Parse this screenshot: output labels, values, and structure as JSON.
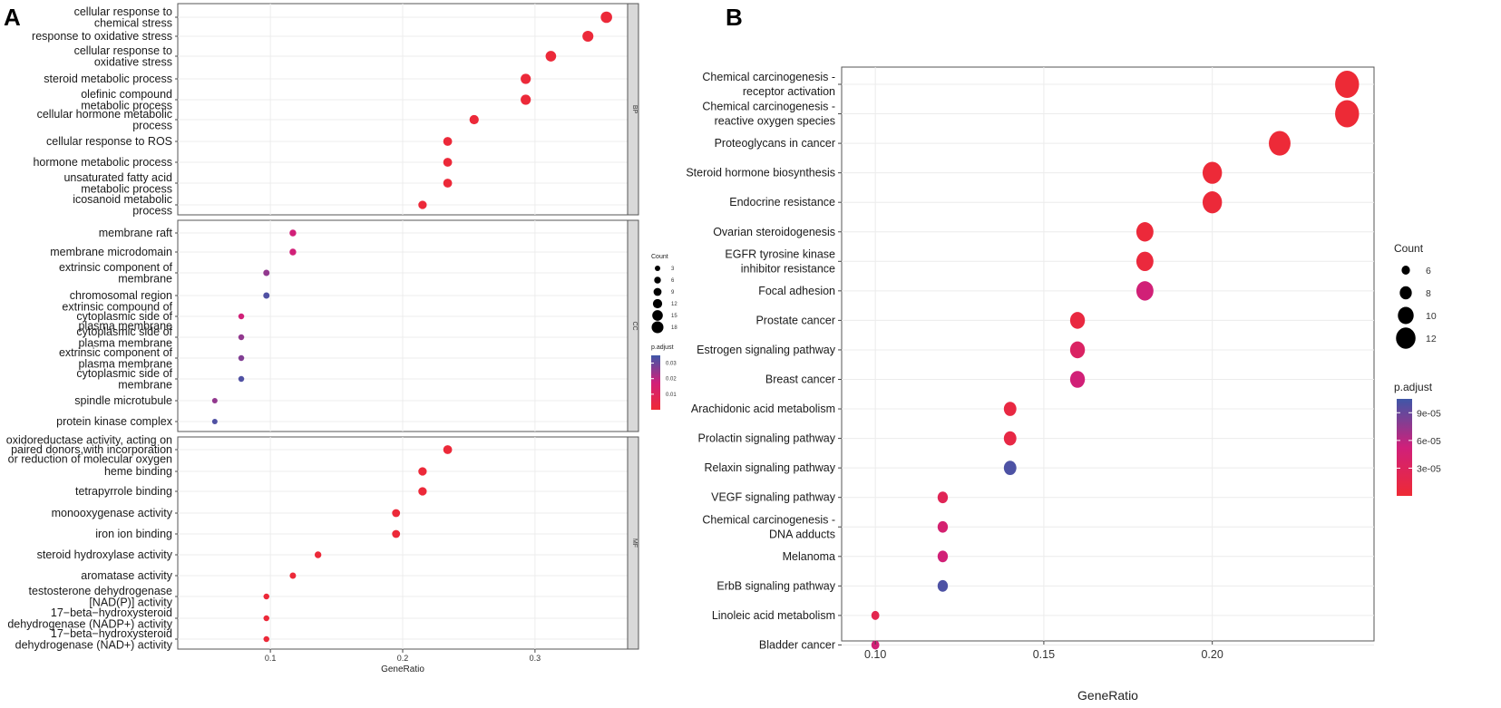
{
  "figure": {
    "label_a": "A",
    "label_b": "B"
  },
  "colors": {
    "high": "#ee2a35",
    "mid": "#d0207a",
    "low": "#3f57a8"
  },
  "chart_data": [
    {
      "type": "scatter",
      "title": "",
      "xlabel": "GeneRatio",
      "ylabel": "",
      "x_ticks": [
        0.1,
        0.2,
        0.3
      ],
      "x_tick_labels": [
        "0.1",
        "0.2",
        "0.3"
      ],
      "xlim": [
        0.03,
        0.37
      ],
      "size_legend": {
        "title": "Count",
        "values": [
          3,
          6,
          9,
          12,
          15,
          18
        ],
        "labels": [
          "3",
          "6",
          "9",
          "12",
          "15",
          "18"
        ]
      },
      "color_legend": {
        "title": "p.adjust",
        "range": [
          0.0,
          0.035
        ],
        "ticks": [
          0.01,
          0.02,
          0.03
        ],
        "labels": [
          "0.01",
          "0.02",
          "0.03"
        ]
      },
      "facets": [
        {
          "name": "BP",
          "terms": [
            {
              "label": [
                "cellular response to",
                "chemical stress"
              ],
              "x": 0.354,
              "count": 17,
              "p_adjust": 0.001
            },
            {
              "label": [
                "response to oxidative stress"
              ],
              "x": 0.34,
              "count": 16,
              "p_adjust": 0.001
            },
            {
              "label": [
                "cellular response to",
                "oxidative stress"
              ],
              "x": 0.312,
              "count": 15,
              "p_adjust": 0.001
            },
            {
              "label": [
                "steroid metabolic process"
              ],
              "x": 0.293,
              "count": 14,
              "p_adjust": 0.001
            },
            {
              "label": [
                "olefinic compound",
                "metabolic process"
              ],
              "x": 0.293,
              "count": 14,
              "p_adjust": 0.001
            },
            {
              "label": [
                "cellular hormone metabolic",
                "process"
              ],
              "x": 0.254,
              "count": 12,
              "p_adjust": 0.001
            },
            {
              "label": [
                "cellular response to ROS"
              ],
              "x": 0.234,
              "count": 11,
              "p_adjust": 0.001
            },
            {
              "label": [
                "hormone metabolic process"
              ],
              "x": 0.234,
              "count": 11,
              "p_adjust": 0.001
            },
            {
              "label": [
                "unsaturated fatty acid",
                "metabolic process"
              ],
              "x": 0.234,
              "count": 11,
              "p_adjust": 0.001
            },
            {
              "label": [
                "icosanoid metabolic",
                "process"
              ],
              "x": 0.215,
              "count": 10,
              "p_adjust": 0.001
            }
          ]
        },
        {
          "name": "CC",
          "terms": [
            {
              "label": [
                "membrane raft"
              ],
              "x": 0.117,
              "count": 6,
              "p_adjust": 0.017
            },
            {
              "label": [
                "membrane microdomain"
              ],
              "x": 0.117,
              "count": 6,
              "p_adjust": 0.017
            },
            {
              "label": [
                "extrinsic component of",
                "membrane"
              ],
              "x": 0.097,
              "count": 5,
              "p_adjust": 0.025
            },
            {
              "label": [
                "chromosomal region"
              ],
              "x": 0.097,
              "count": 5,
              "p_adjust": 0.033
            },
            {
              "label": [
                "extrinsic compound of",
                "cytoplasmic side of",
                "plasma membrane"
              ],
              "x": 0.078,
              "count": 4,
              "p_adjust": 0.017
            },
            {
              "label": [
                "cytoplasmic side of",
                "plasma membrane"
              ],
              "x": 0.078,
              "count": 4,
              "p_adjust": 0.025
            },
            {
              "label": [
                "extrinsic component of",
                "plasma membrane"
              ],
              "x": 0.078,
              "count": 4,
              "p_adjust": 0.027
            },
            {
              "label": [
                "cytoplasmic side of",
                "membrane"
              ],
              "x": 0.078,
              "count": 4,
              "p_adjust": 0.033
            },
            {
              "label": [
                "spindle microtubule"
              ],
              "x": 0.058,
              "count": 3,
              "p_adjust": 0.025
            },
            {
              "label": [
                "protein kinase complex"
              ],
              "x": 0.058,
              "count": 3,
              "p_adjust": 0.033
            }
          ]
        },
        {
          "name": "MF",
          "terms": [
            {
              "label": [
                "oxidoreductase activity, acting on",
                "paired donors,with incorporation",
                "or reduction of molecular oxygen"
              ],
              "x": 0.234,
              "count": 11,
              "p_adjust": 0.001
            },
            {
              "label": [
                "heme binding"
              ],
              "x": 0.215,
              "count": 10,
              "p_adjust": 0.001
            },
            {
              "label": [
                "tetrapyrrole binding"
              ],
              "x": 0.215,
              "count": 10,
              "p_adjust": 0.001
            },
            {
              "label": [
                "monooxygenase activity"
              ],
              "x": 0.195,
              "count": 9,
              "p_adjust": 0.001
            },
            {
              "label": [
                "iron ion binding"
              ],
              "x": 0.195,
              "count": 9,
              "p_adjust": 0.001
            },
            {
              "label": [
                "steroid hydroxylase activity"
              ],
              "x": 0.136,
              "count": 6,
              "p_adjust": 0.001
            },
            {
              "label": [
                "aromatase activity"
              ],
              "x": 0.117,
              "count": 5,
              "p_adjust": 0.001
            },
            {
              "label": [
                "testosterone dehydrogenase",
                "[NAD(P)] activity"
              ],
              "x": 0.097,
              "count": 4,
              "p_adjust": 0.001
            },
            {
              "label": [
                "17−beta−hydroxysteroid",
                "dehydrogenase (NADP+) activity"
              ],
              "x": 0.097,
              "count": 4,
              "p_adjust": 0.001
            },
            {
              "label": [
                "17−beta−hydroxysteroid",
                "dehydrogenase (NAD+) activity"
              ],
              "x": 0.097,
              "count": 4,
              "p_adjust": 0.001
            }
          ]
        }
      ]
    },
    {
      "type": "scatter",
      "title": "",
      "xlabel": "GeneRatio",
      "ylabel": "",
      "x_ticks": [
        0.1,
        0.15,
        0.2
      ],
      "x_tick_labels": [
        "0.10",
        "0.15",
        "0.20"
      ],
      "xlim": [
        0.09,
        0.248
      ],
      "size_legend": {
        "title": "Count",
        "values": [
          6,
          8,
          10,
          12
        ],
        "labels": [
          "6",
          "8",
          "10",
          "12"
        ]
      },
      "color_legend": {
        "title": "p.adjust",
        "range": [
          0.0,
          0.000105
        ],
        "ticks": [
          3e-05,
          6e-05,
          9e-05
        ],
        "labels": [
          "3e-05",
          "6e-05",
          "9e-05"
        ]
      },
      "terms": [
        {
          "label": [
            "Chemical carcinogenesis -",
            "receptor activation"
          ],
          "x": 0.24,
          "count": 12,
          "p_adjust": 1e-06
        },
        {
          "label": [
            "Chemical carcinogenesis -",
            "reactive oxygen species"
          ],
          "x": 0.24,
          "count": 12,
          "p_adjust": 1e-06
        },
        {
          "label": [
            "Proteoglycans in cancer"
          ],
          "x": 0.22,
          "count": 11,
          "p_adjust": 2e-06
        },
        {
          "label": [
            "Steroid hormone biosynthesis"
          ],
          "x": 0.2,
          "count": 10,
          "p_adjust": 2e-06
        },
        {
          "label": [
            "Endocrine resistance"
          ],
          "x": 0.2,
          "count": 10,
          "p_adjust": 3e-06
        },
        {
          "label": [
            "Ovarian steroidogenesis"
          ],
          "x": 0.18,
          "count": 9,
          "p_adjust": 4e-06
        },
        {
          "label": [
            "EGFR tyrosine kinase",
            "inhibitor resistance"
          ],
          "x": 0.18,
          "count": 9,
          "p_adjust": 6e-06
        },
        {
          "label": [
            "Focal adhesion"
          ],
          "x": 0.18,
          "count": 9,
          "p_adjust": 5e-05
        },
        {
          "label": [
            "Prostate cancer"
          ],
          "x": 0.16,
          "count": 8,
          "p_adjust": 8e-06
        },
        {
          "label": [
            "Estrogen signaling pathway"
          ],
          "x": 0.16,
          "count": 8,
          "p_adjust": 3.5e-05
        },
        {
          "label": [
            "Breast cancer"
          ],
          "x": 0.16,
          "count": 8,
          "p_adjust": 5e-05
        },
        {
          "label": [
            "Arachidonic acid metabolism"
          ],
          "x": 0.14,
          "count": 7,
          "p_adjust": 1e-05
        },
        {
          "label": [
            "Prolactin signaling pathway"
          ],
          "x": 0.14,
          "count": 7,
          "p_adjust": 1.2e-05
        },
        {
          "label": [
            "Relaxin signaling pathway"
          ],
          "x": 0.14,
          "count": 7,
          "p_adjust": 0.0001
        },
        {
          "label": [
            "VEGF signaling pathway"
          ],
          "x": 0.12,
          "count": 6,
          "p_adjust": 2.5e-05
        },
        {
          "label": [
            "Chemical carcinogenesis -",
            "DNA adducts"
          ],
          "x": 0.12,
          "count": 6,
          "p_adjust": 4.5e-05
        },
        {
          "label": [
            "Melanoma"
          ],
          "x": 0.12,
          "count": 6,
          "p_adjust": 5e-05
        },
        {
          "label": [
            "ErbB signaling pathway"
          ],
          "x": 0.12,
          "count": 6,
          "p_adjust": 0.0001
        },
        {
          "label": [
            "Linoleic acid metabolism"
          ],
          "x": 0.1,
          "count": 5,
          "p_adjust": 2e-05
        },
        {
          "label": [
            "Bladder cancer"
          ],
          "x": 0.1,
          "count": 5,
          "p_adjust": 5e-05
        }
      ]
    }
  ]
}
